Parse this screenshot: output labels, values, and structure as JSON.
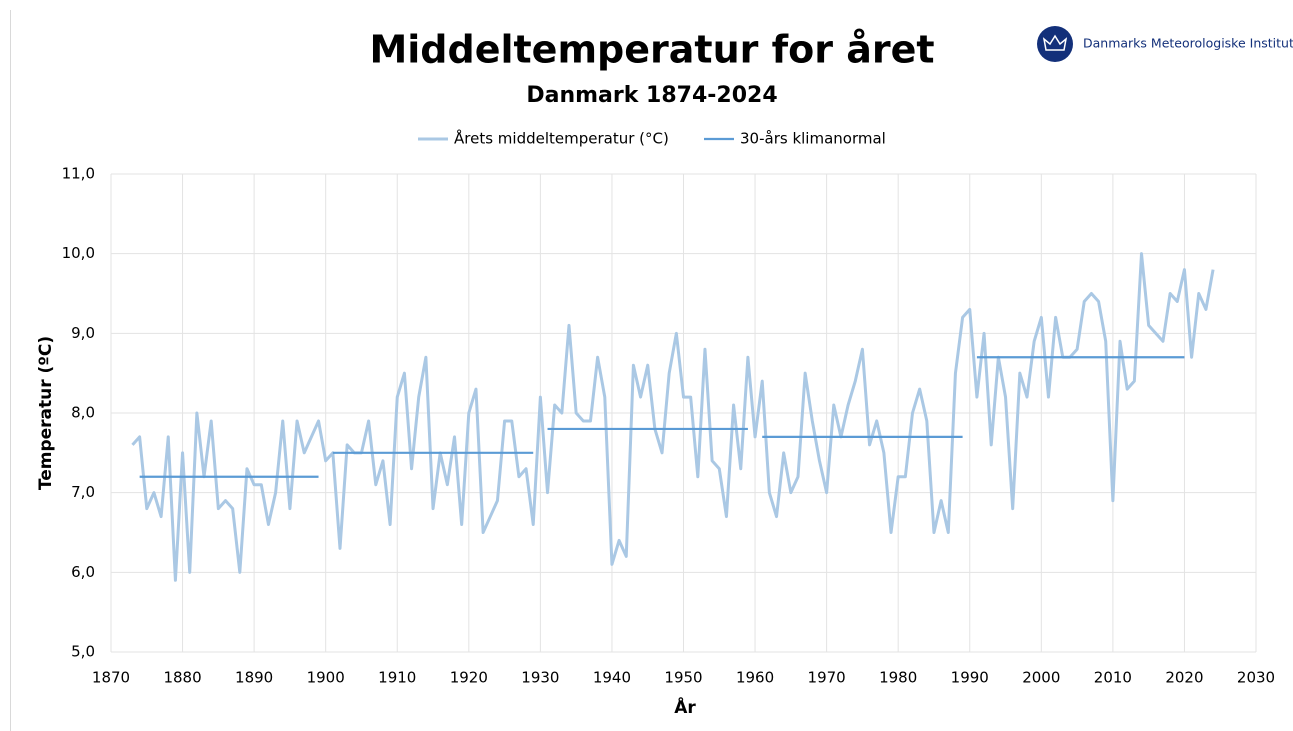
{
  "branding": {
    "name": "Danmarks Meteorologiske Institut"
  },
  "chart_data": {
    "type": "line",
    "title": "Middeltemperatur for året",
    "subtitle": "Danmark 1874-2024",
    "x_label": "År",
    "y_label": "Temperatur (ºC)",
    "x": [
      1873,
      1874,
      1875,
      1876,
      1877,
      1878,
      1879,
      1880,
      1881,
      1882,
      1883,
      1884,
      1885,
      1886,
      1887,
      1888,
      1889,
      1890,
      1891,
      1892,
      1893,
      1894,
      1895,
      1896,
      1897,
      1898,
      1899,
      1900,
      1901,
      1902,
      1903,
      1904,
      1905,
      1906,
      1907,
      1908,
      1909,
      1910,
      1911,
      1912,
      1913,
      1914,
      1915,
      1916,
      1917,
      1918,
      1919,
      1920,
      1921,
      1922,
      1923,
      1924,
      1925,
      1926,
      1927,
      1928,
      1929,
      1930,
      1931,
      1932,
      1933,
      1934,
      1935,
      1936,
      1937,
      1938,
      1939,
      1940,
      1941,
      1942,
      1943,
      1944,
      1945,
      1946,
      1947,
      1948,
      1949,
      1950,
      1951,
      1952,
      1953,
      1954,
      1955,
      1956,
      1957,
      1958,
      1959,
      1960,
      1961,
      1962,
      1963,
      1964,
      1965,
      1966,
      1967,
      1968,
      1969,
      1970,
      1971,
      1972,
      1973,
      1974,
      1975,
      1976,
      1977,
      1978,
      1979,
      1980,
      1981,
      1982,
      1983,
      1984,
      1985,
      1986,
      1987,
      1988,
      1989,
      1990,
      1991,
      1992,
      1993,
      1994,
      1995,
      1996,
      1997,
      1998,
      1999,
      2000,
      2001,
      2002,
      2003,
      2004,
      2005,
      2006,
      2007,
      2008,
      2009,
      2010,
      2011,
      2012,
      2013,
      2014,
      2015,
      2016,
      2017,
      2018,
      2019,
      2020,
      2021,
      2022,
      2023,
      2024
    ],
    "series": [
      {
        "name": "Årets middeltemperatur (°C)",
        "color": "#aac8e4",
        "width": 3,
        "values": [
          7.6,
          7.7,
          6.8,
          7.0,
          6.7,
          7.7,
          5.9,
          7.5,
          6.0,
          8.0,
          7.2,
          7.9,
          6.8,
          6.9,
          6.8,
          6.0,
          7.3,
          7.1,
          7.1,
          6.6,
          7.0,
          7.9,
          6.8,
          7.9,
          7.5,
          7.7,
          7.9,
          7.4,
          7.5,
          6.3,
          7.6,
          7.5,
          7.5,
          7.9,
          7.1,
          7.4,
          6.6,
          8.2,
          8.5,
          7.3,
          8.2,
          8.7,
          6.8,
          7.5,
          7.1,
          7.7,
          6.6,
          8.0,
          8.3,
          6.5,
          6.7,
          6.9,
          7.9,
          7.9,
          7.2,
          7.3,
          6.6,
          8.2,
          7.0,
          8.1,
          8.0,
          9.1,
          8.0,
          7.9,
          7.9,
          8.7,
          8.2,
          6.1,
          6.4,
          6.2,
          8.6,
          8.2,
          8.6,
          7.8,
          7.5,
          8.5,
          9.0,
          8.2,
          8.2,
          7.2,
          8.8,
          7.4,
          7.3,
          6.7,
          8.1,
          7.3,
          8.7,
          7.7,
          8.4,
          7.0,
          6.7,
          7.5,
          7.0,
          7.2,
          8.5,
          7.9,
          7.4,
          7.0,
          8.1,
          7.7,
          8.1,
          8.4,
          8.8,
          7.6,
          7.9,
          7.5,
          6.5,
          7.2,
          7.2,
          8.0,
          8.3,
          7.9,
          6.5,
          6.9,
          6.5,
          8.5,
          9.2,
          9.3,
          8.2,
          9.0,
          7.6,
          8.7,
          8.2,
          6.8,
          8.5,
          8.2,
          8.9,
          9.2,
          8.2,
          9.2,
          8.7,
          8.7,
          8.8,
          9.4,
          9.5,
          9.4,
          8.9,
          6.9,
          8.9,
          8.3,
          8.4,
          10.0,
          9.1,
          9.0,
          8.9,
          9.5,
          9.4,
          9.8,
          8.7,
          9.5,
          9.3,
          9.8
        ]
      },
      {
        "name": "30-års klimanormal",
        "color": "#5b9bd5",
        "width": 2.2,
        "values": [
          null,
          7.2,
          7.2,
          7.2,
          7.2,
          7.2,
          7.2,
          7.2,
          7.2,
          7.2,
          7.2,
          7.2,
          7.2,
          7.2,
          7.2,
          7.2,
          7.2,
          7.2,
          7.2,
          7.2,
          7.2,
          7.2,
          7.2,
          7.2,
          7.2,
          7.2,
          7.2,
          null,
          7.5,
          7.5,
          7.5,
          7.5,
          7.5,
          7.5,
          7.5,
          7.5,
          7.5,
          7.5,
          7.5,
          7.5,
          7.5,
          7.5,
          7.5,
          7.5,
          7.5,
          7.5,
          7.5,
          7.5,
          7.5,
          7.5,
          7.5,
          7.5,
          7.5,
          7.5,
          7.5,
          7.5,
          7.5,
          null,
          7.8,
          7.8,
          7.8,
          7.8,
          7.8,
          7.8,
          7.8,
          7.8,
          7.8,
          7.8,
          7.8,
          7.8,
          7.8,
          7.8,
          7.8,
          7.8,
          7.8,
          7.8,
          7.8,
          7.8,
          7.8,
          7.8,
          7.8,
          7.8,
          7.8,
          7.8,
          7.8,
          7.8,
          7.8,
          null,
          7.7,
          7.7,
          7.7,
          7.7,
          7.7,
          7.7,
          7.7,
          7.7,
          7.7,
          7.7,
          7.7,
          7.7,
          7.7,
          7.7,
          7.7,
          7.7,
          7.7,
          7.7,
          7.7,
          7.7,
          7.7,
          7.7,
          7.7,
          7.7,
          7.7,
          7.7,
          7.7,
          7.7,
          7.7,
          null,
          8.7,
          8.7,
          8.7,
          8.7,
          8.7,
          8.7,
          8.7,
          8.7,
          8.7,
          8.7,
          8.7,
          8.7,
          8.7,
          8.7,
          8.7,
          8.7,
          8.7,
          8.7,
          8.7,
          8.7,
          8.7,
          8.7,
          8.7,
          8.7,
          8.7,
          8.7,
          8.7,
          8.7,
          8.7,
          8.7,
          null,
          null,
          null,
          null
        ]
      }
    ],
    "xlim": [
      1870,
      2030
    ],
    "xticks": [
      1870,
      1880,
      1890,
      1900,
      1910,
      1920,
      1930,
      1940,
      1950,
      1960,
      1970,
      1980,
      1990,
      2000,
      2010,
      2020,
      2030
    ],
    "ylim": [
      5,
      11
    ],
    "yticks": [
      {
        "value": 5,
        "label": "5,0"
      },
      {
        "value": 6,
        "label": "6,0"
      },
      {
        "value": 7,
        "label": "7,0"
      },
      {
        "value": 8,
        "label": "8,0"
      },
      {
        "value": 9,
        "label": "9,0"
      },
      {
        "value": 10,
        "label": "10,0"
      },
      {
        "value": 11,
        "label": "11,0"
      }
    ],
    "grid": true
  }
}
